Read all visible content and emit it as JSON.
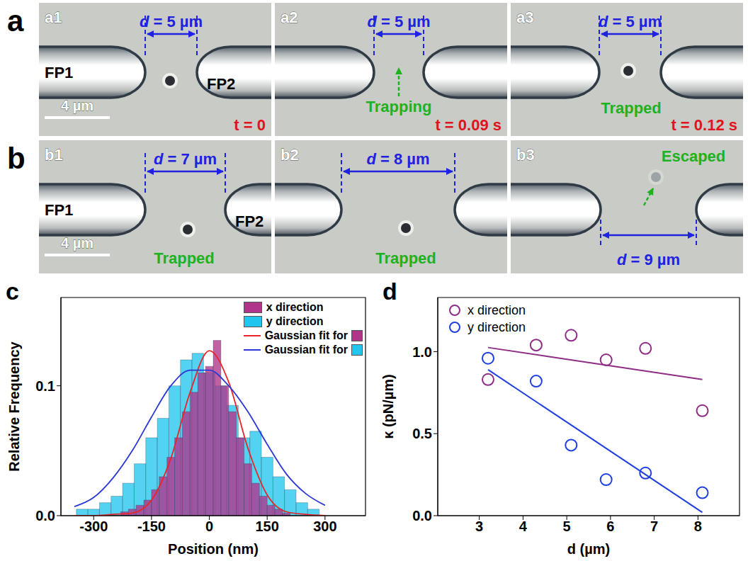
{
  "panel_a": {
    "label": "a",
    "frames": [
      {
        "tag": "a1",
        "left_probe": "FP1",
        "right_probe": "FP2",
        "distance": "d = 5 µm",
        "time": "t = 0",
        "scale_bar": "4 µm"
      },
      {
        "tag": "a2",
        "distance": "d = 5 µm",
        "status": "Trapping",
        "time": "t = 0.09 s"
      },
      {
        "tag": "a3",
        "distance": "d = 5 µm",
        "status": "Trapped",
        "time": "t = 0.12 s"
      }
    ]
  },
  "panel_b": {
    "label": "b",
    "frames": [
      {
        "tag": "b1",
        "left_probe": "FP1",
        "right_probe": "FP2",
        "distance": "d = 7 µm",
        "status": "Trapped",
        "scale_bar": "4 µm"
      },
      {
        "tag": "b2",
        "distance": "d = 8 µm",
        "status": "Trapped"
      },
      {
        "tag": "b3",
        "distance": "d = 9 µm",
        "status": "Escaped"
      }
    ]
  },
  "chart_data": [
    {
      "label": "c",
      "type": "histogram",
      "x_label": "Position (nm)",
      "y_label": "Relative Frequency",
      "xlim": [
        -385,
        405
      ],
      "xticks": [
        -300,
        -150,
        0,
        150,
        300
      ],
      "ylim": [
        0,
        0.168
      ],
      "yticks": [
        {
          "value": 0,
          "label": "0.0"
        },
        0.1
      ],
      "legend": "upper right",
      "series": [
        {
          "name": "x direction",
          "type": "histogram",
          "color": "#b0348a",
          "bins": [
            -230,
            -210,
            -190,
            -170,
            -150,
            -130,
            -110,
            -90,
            -70,
            -50,
            -30,
            -10,
            10,
            30,
            50,
            70,
            90,
            110,
            130,
            150,
            170,
            190,
            210
          ],
          "values": [
            0.003,
            0.005,
            0.008,
            0.012,
            0.02,
            0.03,
            0.045,
            0.06,
            0.08,
            0.095,
            0.11,
            0.115,
            0.135,
            0.1,
            0.08,
            0.06,
            0.04,
            0.025,
            0.015,
            0.008,
            0.005,
            0.002
          ]
        },
        {
          "name": "y direction",
          "type": "histogram",
          "color": "#22c5ee",
          "bins": [
            -345,
            -315,
            -285,
            -255,
            -225,
            -195,
            -165,
            -135,
            -105,
            -75,
            -45,
            -15,
            15,
            45,
            75,
            105,
            135,
            165,
            195,
            225,
            255,
            285
          ],
          "values": [
            0.005,
            0.005,
            0.01,
            0.015,
            0.025,
            0.04,
            0.06,
            0.075,
            0.1,
            0.12,
            0.125,
            0.11,
            0.1,
            0.085,
            0.06,
            0.065,
            0.045,
            0.03,
            0.02,
            0.01,
            0.005
          ]
        },
        {
          "name": "Gaussian fit for",
          "type": "line",
          "color": "#e8262a",
          "x": [
            -350,
            -300,
            -250,
            -200,
            -150,
            -100,
            -50,
            0,
            50,
            100,
            150,
            200,
            250,
            300
          ],
          "values": [
            0,
            0,
            0.001,
            0.002,
            0.012,
            0.044,
            0.095,
            0.127,
            0.103,
            0.052,
            0.016,
            0.003,
            0.001,
            0
          ]
        },
        {
          "name": "Gaussian fit for",
          "type": "line",
          "color": "#2b38d6",
          "x": [
            -350,
            -300,
            -250,
            -200,
            -150,
            -100,
            -50,
            0,
            50,
            100,
            150,
            200,
            250,
            300
          ],
          "values": [
            0.007,
            0.014,
            0.029,
            0.05,
            0.076,
            0.1,
            0.112,
            0.112,
            0.1,
            0.08,
            0.055,
            0.032,
            0.017,
            0.008
          ]
        }
      ]
    },
    {
      "label": "d",
      "type": "scatter",
      "x_label": "d (µm)",
      "y_label": "κ (pN/µm)",
      "xlim": [
        2.05,
        8.95
      ],
      "xticks": [
        3,
        4,
        5,
        6,
        7,
        8
      ],
      "ylim": [
        0,
        1.33
      ],
      "yticks": [
        {
          "value": 0,
          "label": "0.0"
        },
        0.5,
        {
          "value": 1,
          "label": "1.0"
        }
      ],
      "legend": "upper left",
      "marker": "open circle",
      "series": [
        {
          "name": "x direction",
          "color": "#8e2c86",
          "x": [
            3.2,
            4.3,
            5.1,
            5.9,
            6.8,
            8.1
          ],
          "values": [
            0.83,
            1.04,
            1.1,
            0.95,
            1.02,
            0.64
          ],
          "fit": {
            "x": [
              3.2,
              8.1
            ],
            "values": [
              1.025,
              0.83
            ]
          }
        },
        {
          "name": "y direction",
          "color": "#1f3fe0",
          "x": [
            3.2,
            4.3,
            5.1,
            5.9,
            6.8,
            8.1
          ],
          "values": [
            0.96,
            0.82,
            0.43,
            0.22,
            0.26,
            0.14
          ],
          "fit": {
            "x": [
              3.2,
              8.1
            ],
            "values": [
              0.89,
              0.02
            ]
          }
        }
      ]
    }
  ]
}
